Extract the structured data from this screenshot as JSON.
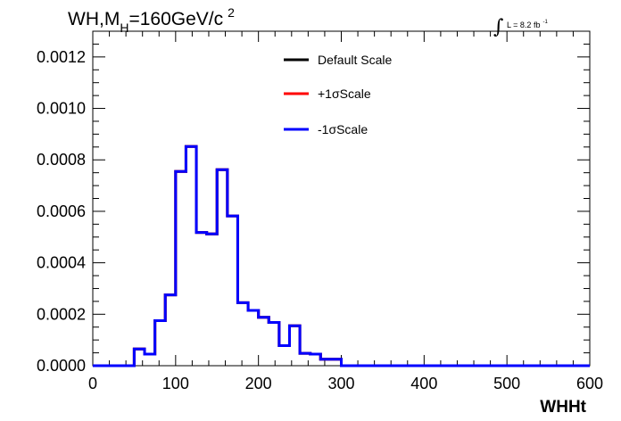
{
  "chart_data": {
    "type": "histogram",
    "title_parts": {
      "main": "WH,M",
      "sub": "H",
      "rest": "=160GeV/c",
      "sup": "2"
    },
    "lumi_label": {
      "symbol": "∫",
      "text": "L = 8.2 fb",
      "sup": "-1"
    },
    "xlabel": "WHHt",
    "ylabel": "",
    "xlim": [
      0,
      600
    ],
    "ylim": [
      0,
      0.0013
    ],
    "x_ticks": [
      0,
      100,
      200,
      300,
      400,
      500,
      600
    ],
    "x_tick_labels": [
      "0",
      "100",
      "200",
      "300",
      "400",
      "500",
      "600"
    ],
    "y_ticks": [
      0,
      0.0002,
      0.0004,
      0.0006,
      0.0008,
      0.001,
      0.0012
    ],
    "y_tick_labels": [
      "0.0000",
      "0.0002",
      "0.0004",
      "0.0006",
      "0.0008",
      "0.0010",
      "0.0012"
    ],
    "bin_edges": [
      0,
      12.5,
      25,
      37.5,
      50,
      62.5,
      75,
      87.5,
      100,
      112.5,
      125,
      137.5,
      150,
      162.5,
      175,
      187.5,
      200,
      212.5,
      225,
      237.5,
      250,
      262.5,
      275,
      287.5,
      300,
      312.5,
      325,
      337.5,
      350,
      362.5,
      375,
      387.5,
      400,
      412.5,
      425,
      437.5,
      450,
      462.5,
      475,
      487.5,
      500,
      512.5,
      525,
      537.5,
      550,
      562.5,
      575,
      587.5,
      600
    ],
    "legend_position": "top-center",
    "series": [
      {
        "name": "Default Scale",
        "color": "#000000",
        "values": [
          0,
          0,
          0,
          0,
          6.5e-05,
          4.5e-05,
          0.000175,
          0.000275,
          0.000755,
          0.000852,
          0.000518,
          0.000512,
          0.000762,
          0.000582,
          0.000245,
          0.000215,
          0.000188,
          0.000168,
          7.8e-05,
          0.000155,
          4.8e-05,
          4.5e-05,
          2.5e-05,
          2.5e-05,
          0,
          0,
          0,
          0,
          0,
          0,
          0,
          0,
          0,
          0,
          0,
          0,
          0,
          0,
          0,
          0,
          0,
          0,
          0,
          0,
          0,
          0,
          0,
          0
        ]
      },
      {
        "name": "+1σScale",
        "color": "#ff0000",
        "values": [
          0,
          0,
          0,
          0,
          6.5e-05,
          4.5e-05,
          0.000175,
          0.000275,
          0.000755,
          0.000852,
          0.000518,
          0.000512,
          0.000762,
          0.000582,
          0.000245,
          0.000215,
          0.000188,
          0.000168,
          7.8e-05,
          0.000155,
          4.8e-05,
          4.5e-05,
          2.5e-05,
          2.5e-05,
          0,
          0,
          0,
          0,
          0,
          0,
          0,
          0,
          0,
          0,
          0,
          0,
          0,
          0,
          0,
          0,
          0,
          0,
          0,
          0,
          0,
          0,
          0,
          0
        ]
      },
      {
        "name": "-1σScale",
        "color": "#0000ff",
        "values": [
          0,
          0,
          0,
          0,
          6.5e-05,
          4.5e-05,
          0.000175,
          0.000275,
          0.000755,
          0.000852,
          0.000518,
          0.000512,
          0.000762,
          0.000582,
          0.000245,
          0.000215,
          0.000188,
          0.000168,
          7.8e-05,
          0.000155,
          4.8e-05,
          4.5e-05,
          2.5e-05,
          2.5e-05,
          0,
          0,
          0,
          0,
          0,
          0,
          0,
          0,
          0,
          0,
          0,
          0,
          0,
          0,
          0,
          0,
          0,
          0,
          0,
          0,
          0,
          0,
          0,
          0
        ]
      }
    ]
  }
}
